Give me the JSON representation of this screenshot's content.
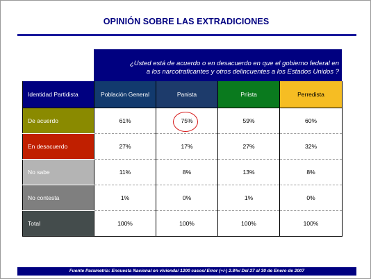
{
  "title": "OPINIÓN SOBRE LAS EXTRADICIONES",
  "question": {
    "line1": "¿Usted está de acuerdo o en desacuerdo en que el gobierno federal en",
    "line2": "a los narcotraficantes y otros delincuentes a los Estados Unidos ?"
  },
  "table": {
    "header": {
      "label": "Identidad Partidista",
      "columns": [
        "Población General",
        "Panista",
        "Priista",
        "Perredista"
      ]
    },
    "rows": [
      {
        "label": "De acuerdo",
        "values": [
          "61%",
          "75%",
          "59%",
          "60%"
        ]
      },
      {
        "label": "En desacuerdo",
        "values": [
          "27%",
          "17%",
          "27%",
          "32%"
        ]
      },
      {
        "label": "No sabe",
        "values": [
          "11%",
          "8%",
          "13%",
          "8%"
        ]
      },
      {
        "label": "No contesta",
        "values": [
          "1%",
          "0%",
          "1%",
          "0%"
        ]
      },
      {
        "label": "Total",
        "values": [
          "100%",
          "100%",
          "100%",
          "100%"
        ]
      }
    ]
  },
  "colors": {
    "header_label_bg": "#000080",
    "col_poblacion": "#123a6e",
    "col_panista": "#1d3b6b",
    "col_priista": "#0a7a1e",
    "col_perredista": "#f6bd23",
    "row_de_acuerdo": "#8a8a00",
    "row_en_desacuerdo": "#c01f00",
    "row_no_sabe": "#b4b4b4",
    "row_no_contesta": "#7f7f7f",
    "row_total": "#444c4c",
    "highlight_circle": "#d61a1a"
  },
  "footer": "Fuente Parametría: Encuesta Nacional en vivienda/ 1200 casos/ Error (+/-) 2.8%/ Del 27 al 30 de Enero de 2007"
}
